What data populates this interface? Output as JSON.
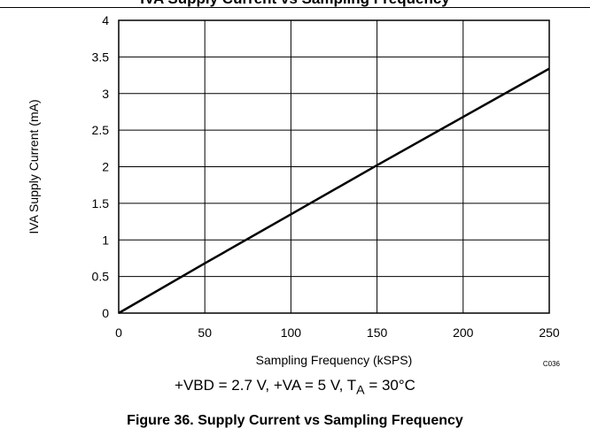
{
  "header": {
    "title_fragment": "IVA Supply Current vs Sampling Frequency"
  },
  "chart_data": {
    "type": "line",
    "title": "",
    "xlabel": "Sampling Frequency (kSPS)",
    "ylabel": "IVA Supply Current (mA)",
    "xlim": [
      0,
      250
    ],
    "ylim": [
      0,
      4
    ],
    "xticks": [
      0,
      50,
      100,
      150,
      200,
      250
    ],
    "yticks": [
      0,
      0.5,
      1,
      1.5,
      2,
      2.5,
      3,
      3.5,
      4
    ],
    "xtick_labels": [
      "0",
      "50",
      "100",
      "150",
      "200",
      "250"
    ],
    "ytick_labels": [
      "0",
      "0.5",
      "1",
      "1.5",
      "2",
      "2.5",
      "3",
      "3.5",
      "4"
    ],
    "grid": true,
    "legend": "none",
    "code": "C036",
    "line_color": "#000000",
    "series": [
      {
        "x": [
          0,
          50,
          100,
          150,
          200,
          250
        ],
        "y": [
          0,
          0.68,
          1.35,
          2.02,
          2.68,
          3.34
        ]
      }
    ]
  },
  "conditions": {
    "prefix": "+VBD = 2.7 V, +VA = 5 V, T",
    "subscript": "A",
    "suffix": " = 30°C"
  },
  "caption": "Figure 36. Supply Current vs Sampling Frequency"
}
